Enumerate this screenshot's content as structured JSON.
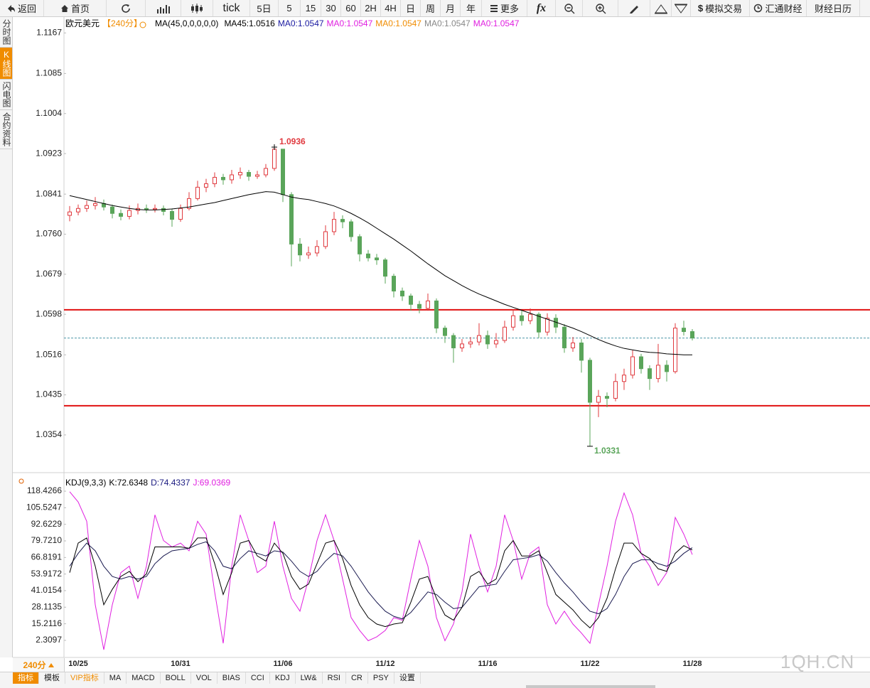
{
  "ui": {
    "toolbar": {
      "back": "返回",
      "home": "首页",
      "tick": "tick",
      "d5": "5日",
      "m5": "5",
      "m15": "15",
      "m30": "30",
      "m60": "60",
      "h2": "2H",
      "h4": "4H",
      "day": "日",
      "week": "周",
      "month": "月",
      "year": "年",
      "more": "更多",
      "fx": "fx",
      "sim": "模拟交易",
      "news": "汇通财经",
      "calendar": "财经日历"
    },
    "side_tabs": [
      "分时图",
      "K线图",
      "闪电图",
      "合约资料"
    ],
    "period": "240分",
    "bottom_tabs": [
      "指标",
      "模板",
      "VIP指标",
      "MA",
      "MACD",
      "BOLL",
      "VOL",
      "BIAS",
      "CCI",
      "KDJ",
      "LW&",
      "RSI",
      "CR",
      "PSY",
      "设置"
    ],
    "watermark": "1QH.CN"
  },
  "chart_data": [
    {
      "type": "candlestick",
      "legend": [
        {
          "text": "欧元美元",
          "color": "#000000"
        },
        {
          "text": "【240分】",
          "color": "#f08c00"
        },
        {
          "text": "MA(45,0,0,0,0,0)",
          "color": "#000000"
        },
        {
          "text": "MA45:1.0516",
          "color": "#000000"
        },
        {
          "text": "MA0:1.0547",
          "color": "#1a1aa0"
        },
        {
          "text": "MA0:1.0547",
          "color": "#e020e0"
        },
        {
          "text": "MA0:1.0547",
          "color": "#f08c00"
        },
        {
          "text": "MA0:1.0547",
          "color": "#888888"
        },
        {
          "text": "MA0:1.0547",
          "color": "#e020e0"
        }
      ],
      "ylim": [
        1.0282,
        1.1179
      ],
      "yticks": [
        {
          "value": 1.1167,
          "label": "1.1167"
        },
        {
          "value": 1.1085,
          "label": "1.1085"
        },
        {
          "value": 1.1004,
          "label": "1.1004"
        },
        {
          "value": 1.0923,
          "label": "1.0923"
        },
        {
          "value": 1.0841,
          "label": "1.0841"
        },
        {
          "value": 1.076,
          "label": "1.0760"
        },
        1.0679,
        1.0598,
        1.0516,
        1.0435,
        1.0354
      ],
      "up_color": "#e0393e",
      "down_color": "#5aa55a",
      "ma_color": "#000000",
      "last_color": "#4d97a8",
      "hlines": [
        1.0607,
        1.0413
      ],
      "hline_color": "#e01010",
      "open": [
        1.0798,
        1.0805,
        1.0812,
        1.0818,
        1.0822,
        1.0815,
        1.0802,
        1.0796,
        1.0808,
        1.0812,
        1.081,
        1.0812,
        1.0806,
        1.079,
        1.0812,
        1.0832,
        1.0855,
        1.0862,
        1.0875,
        1.087,
        1.088,
        1.0885,
        1.0877,
        1.088,
        1.0893,
        1.0932,
        1.084,
        1.074,
        1.0718,
        1.0722,
        1.0735,
        1.0765,
        1.079,
        1.0785,
        1.0755,
        1.072,
        1.0712,
        1.0708,
        1.0675,
        1.0645,
        1.0635,
        1.0618,
        1.061,
        1.0625,
        1.057,
        1.0555,
        1.053,
        1.0538,
        1.0542,
        1.0555,
        1.0538,
        1.0545,
        1.0572,
        1.0595,
        1.0585,
        1.0598,
        1.0562,
        1.059,
        1.0572,
        1.053,
        1.054,
        1.0505,
        1.042,
        1.0432,
        1.0428,
        1.0462,
        1.0475,
        1.0512,
        1.0488,
        1.0468,
        1.0495,
        1.0482,
        1.057,
        1.0563
      ],
      "high": [
        1.0817,
        1.082,
        1.0828,
        1.0835,
        1.083,
        1.082,
        1.081,
        1.0818,
        1.0822,
        1.082,
        1.082,
        1.0818,
        1.0812,
        1.082,
        1.0845,
        1.0868,
        1.0872,
        1.0885,
        1.0882,
        1.089,
        1.0895,
        1.089,
        1.0888,
        1.0902,
        1.0936,
        1.0932,
        1.0845,
        1.0752,
        1.0735,
        1.0748,
        1.0778,
        1.0805,
        1.0798,
        1.079,
        1.076,
        1.0728,
        1.072,
        1.0712,
        1.068,
        1.0652,
        1.064,
        1.0625,
        1.064,
        1.063,
        1.0575,
        1.056,
        1.0548,
        1.0552,
        1.058,
        1.0565,
        1.056,
        1.0585,
        1.0608,
        1.0605,
        1.061,
        1.0602,
        1.06,
        1.0598,
        1.0578,
        1.0552,
        1.0548,
        1.051,
        1.0445,
        1.044,
        1.0478,
        1.0488,
        1.0525,
        1.0518,
        1.0495,
        1.0538,
        1.0505,
        1.058,
        1.0585,
        1.0568
      ],
      "low": [
        1.0786,
        1.0798,
        1.0805,
        1.081,
        1.0808,
        1.0792,
        1.0788,
        1.079,
        1.08,
        1.0803,
        1.0804,
        1.0798,
        1.0775,
        1.0785,
        1.0808,
        1.0828,
        1.0845,
        1.0855,
        1.086,
        1.0862,
        1.0872,
        1.0868,
        1.0872,
        1.0875,
        1.0888,
        1.0825,
        1.0695,
        1.0705,
        1.071,
        1.0715,
        1.073,
        1.0758,
        1.0772,
        1.0745,
        1.0705,
        1.0705,
        1.0698,
        1.066,
        1.0632,
        1.0625,
        1.0605,
        1.06,
        1.0605,
        1.056,
        1.054,
        1.05,
        1.0522,
        1.053,
        1.0535,
        1.0528,
        1.053,
        1.054,
        1.0565,
        1.0575,
        1.0578,
        1.055,
        1.0555,
        1.056,
        1.052,
        1.0522,
        1.048,
        1.0331,
        1.039,
        1.041,
        1.0422,
        1.0445,
        1.0468,
        1.0478,
        1.0445,
        1.046,
        1.0462,
        1.0478,
        1.0555,
        1.0545
      ],
      "close": [
        1.0805,
        1.0812,
        1.0818,
        1.0822,
        1.0815,
        1.0802,
        1.0796,
        1.0808,
        1.0812,
        1.081,
        1.0812,
        1.0806,
        1.079,
        1.0812,
        1.0832,
        1.0855,
        1.0862,
        1.0875,
        1.087,
        1.088,
        1.0885,
        1.0877,
        1.088,
        1.0893,
        1.0932,
        1.084,
        1.074,
        1.0718,
        1.0722,
        1.0735,
        1.0765,
        1.079,
        1.0785,
        1.0755,
        1.072,
        1.0712,
        1.0708,
        1.0675,
        1.0645,
        1.0635,
        1.0618,
        1.061,
        1.0625,
        1.057,
        1.0555,
        1.053,
        1.0538,
        1.0542,
        1.0555,
        1.0538,
        1.0545,
        1.0572,
        1.0595,
        1.0585,
        1.0598,
        1.0562,
        1.059,
        1.0572,
        1.053,
        1.054,
        1.0505,
        1.042,
        1.0432,
        1.0428,
        1.0462,
        1.0475,
        1.0512,
        1.0488,
        1.0468,
        1.0495,
        1.0482,
        1.057,
        1.0563,
        1.055
      ],
      "ma45": [
        1.0838,
        1.0834,
        1.083,
        1.0826,
        1.0822,
        1.0818,
        1.0815,
        1.0812,
        1.081,
        1.0809,
        1.0809,
        1.081,
        1.0811,
        1.0813,
        1.0815,
        1.0818,
        1.0821,
        1.0824,
        1.0828,
        1.0832,
        1.0836,
        1.084,
        1.0843,
        1.0846,
        1.0845,
        1.084,
        1.0835,
        1.0832,
        1.083,
        1.0826,
        1.0822,
        1.0817,
        1.081,
        1.0802,
        1.0793,
        1.0783,
        1.0772,
        1.0761,
        1.075,
        1.0738,
        1.0726,
        1.0713,
        1.07,
        1.0688,
        1.0676,
        1.0666,
        1.0656,
        1.0647,
        1.0639,
        1.0632,
        1.0625,
        1.0618,
        1.0612,
        1.0606,
        1.06,
        1.0594,
        1.0588,
        1.0582,
        1.0576,
        1.057,
        1.0563,
        1.0555,
        1.0547,
        1.054,
        1.0534,
        1.0529,
        1.0526,
        1.0523,
        1.0521,
        1.052,
        1.0518,
        1.0517,
        1.0516,
        1.0516
      ]
    },
    {
      "type": "line",
      "legend": [
        {
          "text": "KDJ(9,3,3)",
          "color": "#000000"
        },
        {
          "text": "K:72.6348",
          "color": "#000000"
        },
        {
          "text": "D:74.4337",
          "color": "#1a1a80"
        },
        {
          "text": "J:69.0369",
          "color": "#e020e0"
        }
      ],
      "ylim": [
        -11,
        127.3
      ],
      "yticks": [
        118.4266,
        105.5247,
        92.6229,
        {
          "value": 79.721,
          "label": "79.7210"
        },
        66.8191,
        53.9172,
        41.0154,
        28.1135,
        15.2116,
        2.3097
      ],
      "categories": [
        null,
        "10/25",
        null,
        null,
        null,
        null,
        null,
        null,
        null,
        null,
        null,
        null,
        null,
        "10/31",
        null,
        null,
        null,
        null,
        null,
        null,
        null,
        null,
        null,
        null,
        null,
        "11/06",
        null,
        null,
        null,
        null,
        null,
        null,
        null,
        null,
        null,
        null,
        null,
        "11/12",
        null,
        null,
        null,
        null,
        null,
        null,
        null,
        null,
        null,
        null,
        null,
        "11/16",
        null,
        null,
        null,
        null,
        null,
        null,
        null,
        null,
        null,
        null,
        null,
        "11/22",
        null,
        null,
        null,
        null,
        null,
        null,
        null,
        null,
        null,
        null,
        null,
        "11/28"
      ],
      "series": [
        {
          "name": "K",
          "color": "#000000",
          "values": [
            55,
            78,
            82,
            60,
            30,
            42,
            52,
            56,
            48,
            54,
            75,
            75,
            75,
            75,
            74,
            82,
            82,
            62,
            38,
            55,
            78,
            80,
            68,
            64,
            78,
            70,
            52,
            42,
            46,
            62,
            78,
            80,
            66,
            45,
            30,
            20,
            15,
            13,
            15,
            16,
            32,
            50,
            52,
            35,
            22,
            18,
            28,
            52,
            56,
            46,
            50,
            72,
            80,
            68,
            68,
            72,
            55,
            38,
            32,
            26,
            18,
            12,
            20,
            35,
            58,
            78,
            78,
            70,
            66,
            58,
            56,
            70,
            76,
            72.6348
          ]
        },
        {
          "name": "D",
          "color": "#1a1a50",
          "values": [
            60,
            70,
            78,
            72,
            60,
            52,
            50,
            52,
            50,
            52,
            62,
            68,
            72,
            73,
            74,
            77,
            79,
            72,
            60,
            58,
            66,
            72,
            70,
            68,
            72,
            71,
            64,
            56,
            52,
            56,
            64,
            70,
            68,
            60,
            50,
            40,
            32,
            25,
            21,
            19,
            24,
            32,
            40,
            38,
            32,
            27,
            28,
            36,
            44,
            45,
            46,
            56,
            65,
            66,
            67,
            69,
            64,
            55,
            47,
            40,
            32,
            25,
            23,
            27,
            38,
            52,
            62,
            65,
            65,
            62,
            60,
            64,
            70,
            74.4337
          ]
        },
        {
          "name": "J",
          "color": "#e020e0",
          "values": [
            118,
            110,
            95,
            30,
            -5,
            30,
            55,
            60,
            35,
            60,
            100,
            80,
            75,
            78,
            72,
            95,
            85,
            40,
            0,
            60,
            100,
            80,
            55,
            60,
            95,
            60,
            35,
            25,
            50,
            80,
            100,
            80,
            50,
            20,
            10,
            2,
            5,
            10,
            20,
            18,
            50,
            80,
            60,
            20,
            2,
            15,
            40,
            85,
            60,
            40,
            60,
            100,
            80,
            50,
            70,
            75,
            30,
            15,
            25,
            15,
            8,
            0,
            30,
            60,
            95,
            117,
            100,
            70,
            60,
            45,
            55,
            98,
            85,
            69.0369
          ]
        }
      ]
    }
  ]
}
